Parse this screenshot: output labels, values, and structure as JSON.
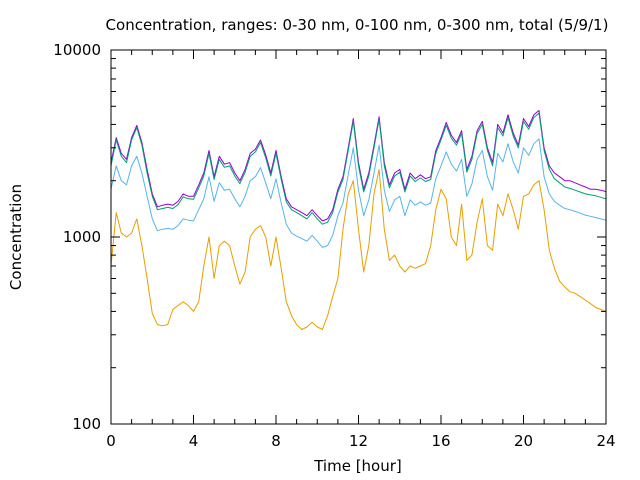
{
  "chart_data": {
    "type": "line",
    "title": "Concentration, ranges: 0-30 nm, 0-100 nm, 0-300 nm, total (5/9/1)",
    "xlabel": "Time [hour]",
    "ylabel": "Concentration",
    "xlim": [
      0,
      24
    ],
    "ylim": [
      100,
      10000
    ],
    "yscale": "log",
    "grid": false,
    "x_ticks": [
      "0",
      "4",
      "8",
      "12",
      "16",
      "20",
      "24"
    ],
    "y_ticks": [
      "100",
      "1000",
      "10000"
    ],
    "colors": {
      "total": "#9400d3",
      "0-300 nm": "#009e73",
      "0-100 nm": "#56b4e9",
      "0-30 nm": "#e69f00",
      "axis": "#000000"
    },
    "x": [
      0,
      0.25,
      0.5,
      0.75,
      1,
      1.25,
      1.5,
      1.75,
      2,
      2.25,
      2.5,
      2.75,
      3,
      3.25,
      3.5,
      3.75,
      4,
      4.25,
      4.5,
      4.75,
      5,
      5.25,
      5.5,
      5.75,
      6,
      6.25,
      6.5,
      6.75,
      7,
      7.25,
      7.5,
      7.75,
      8,
      8.25,
      8.5,
      8.75,
      9,
      9.25,
      9.5,
      9.75,
      10,
      10.25,
      10.5,
      10.75,
      11,
      11.25,
      11.5,
      11.75,
      12,
      12.25,
      12.5,
      12.75,
      13,
      13.25,
      13.5,
      13.75,
      14,
      14.25,
      14.5,
      14.75,
      15,
      15.25,
      15.5,
      15.75,
      16,
      16.25,
      16.5,
      16.75,
      17,
      17.25,
      17.5,
      17.75,
      18,
      18.25,
      18.5,
      18.75,
      19,
      19.25,
      19.5,
      19.75,
      20,
      20.25,
      20.5,
      20.75,
      21,
      21.25,
      21.5,
      21.75,
      22,
      22.25,
      22.5,
      22.75,
      23,
      23.25,
      23.5,
      23.75,
      24
    ],
    "series": [
      {
        "key": "total",
        "values": [
          2500,
          3400,
          2800,
          2600,
          3400,
          3950,
          3200,
          2300,
          1700,
          1450,
          1480,
          1500,
          1480,
          1550,
          1700,
          1650,
          1650,
          1900,
          2200,
          2900,
          2100,
          2700,
          2450,
          2500,
          2200,
          2000,
          2300,
          2800,
          2950,
          3300,
          2750,
          2200,
          2900,
          2100,
          1600,
          1450,
          1400,
          1350,
          1300,
          1400,
          1300,
          1220,
          1250,
          1400,
          1800,
          2100,
          3000,
          4300,
          2500,
          1800,
          2200,
          3100,
          4400,
          2500,
          1900,
          2200,
          2300,
          1800,
          2200,
          2050,
          2150,
          2050,
          2100,
          2900,
          3400,
          4100,
          3500,
          3200,
          3700,
          2300,
          2700,
          3700,
          4150,
          3000,
          2500,
          4000,
          3600,
          4500,
          3600,
          3100,
          4300,
          3900,
          4500,
          4750,
          3000,
          2400,
          2200,
          2100,
          2000,
          2000,
          1950,
          1900,
          1850,
          1800,
          1800,
          1780,
          1750
        ]
      },
      {
        "key": "0-300 nm",
        "values": [
          2400,
          3300,
          2700,
          2500,
          3300,
          3850,
          3100,
          2200,
          1650,
          1400,
          1420,
          1440,
          1420,
          1490,
          1640,
          1600,
          1590,
          1830,
          2120,
          2800,
          2030,
          2600,
          2360,
          2400,
          2120,
          1930,
          2220,
          2700,
          2850,
          3200,
          2650,
          2120,
          2800,
          2030,
          1540,
          1400,
          1350,
          1300,
          1250,
          1350,
          1250,
          1170,
          1200,
          1350,
          1740,
          2030,
          2900,
          4150,
          2400,
          1740,
          2120,
          3000,
          4250,
          2400,
          1830,
          2120,
          2220,
          1740,
          2120,
          1980,
          2070,
          1980,
          2030,
          2800,
          3300,
          3950,
          3380,
          3100,
          3580,
          2220,
          2600,
          3580,
          4000,
          2900,
          2400,
          3850,
          3470,
          4350,
          3470,
          3000,
          4150,
          3770,
          4350,
          4600,
          2900,
          2300,
          2050,
          1950,
          1850,
          1820,
          1780,
          1740,
          1700,
          1680,
          1660,
          1630,
          1600
        ]
      },
      {
        "key": "0-100 nm",
        "values": [
          1800,
          2400,
          2000,
          1900,
          2400,
          2700,
          2200,
          1650,
          1250,
          1080,
          1100,
          1110,
          1100,
          1150,
          1250,
          1230,
          1220,
          1400,
          1600,
          2100,
          1550,
          1950,
          1780,
          1800,
          1600,
          1450,
          1650,
          2000,
          2100,
          2350,
          1950,
          1600,
          2050,
          1520,
          1170,
          1050,
          1010,
          980,
          950,
          1020,
          950,
          880,
          900,
          1020,
          1300,
          1520,
          2150,
          3000,
          1780,
          1300,
          1580,
          2200,
          3100,
          1780,
          1370,
          1580,
          1650,
          1300,
          1580,
          1480,
          1540,
          1480,
          1520,
          2050,
          2400,
          2850,
          2450,
          2250,
          2600,
          1650,
          1920,
          2600,
          2900,
          2100,
          1780,
          2800,
          2520,
          3150,
          2520,
          2200,
          3000,
          2730,
          3150,
          3350,
          2100,
          1700,
          1550,
          1480,
          1420,
          1400,
          1370,
          1340,
          1310,
          1290,
          1270,
          1250,
          1230
        ]
      },
      {
        "key": "0-30 nm",
        "values": [
          700,
          1350,
          1050,
          1000,
          1050,
          1250,
          900,
          600,
          390,
          340,
          335,
          340,
          410,
          430,
          450,
          430,
          400,
          450,
          700,
          1000,
          600,
          900,
          950,
          900,
          700,
          560,
          650,
          1000,
          1100,
          1150,
          1000,
          700,
          1000,
          680,
          450,
          380,
          340,
          320,
          330,
          350,
          330,
          320,
          380,
          480,
          600,
          1100,
          1700,
          2000,
          1100,
          650,
          900,
          1700,
          2300,
          1100,
          750,
          800,
          700,
          650,
          700,
          680,
          700,
          720,
          900,
          1400,
          1800,
          1600,
          1000,
          900,
          1500,
          750,
          800,
          1200,
          1600,
          900,
          850,
          1500,
          1300,
          1700,
          1400,
          1100,
          1650,
          1700,
          1900,
          2000,
          1400,
          850,
          680,
          580,
          540,
          510,
          500,
          480,
          460,
          440,
          420,
          410,
          400
        ]
      }
    ]
  }
}
